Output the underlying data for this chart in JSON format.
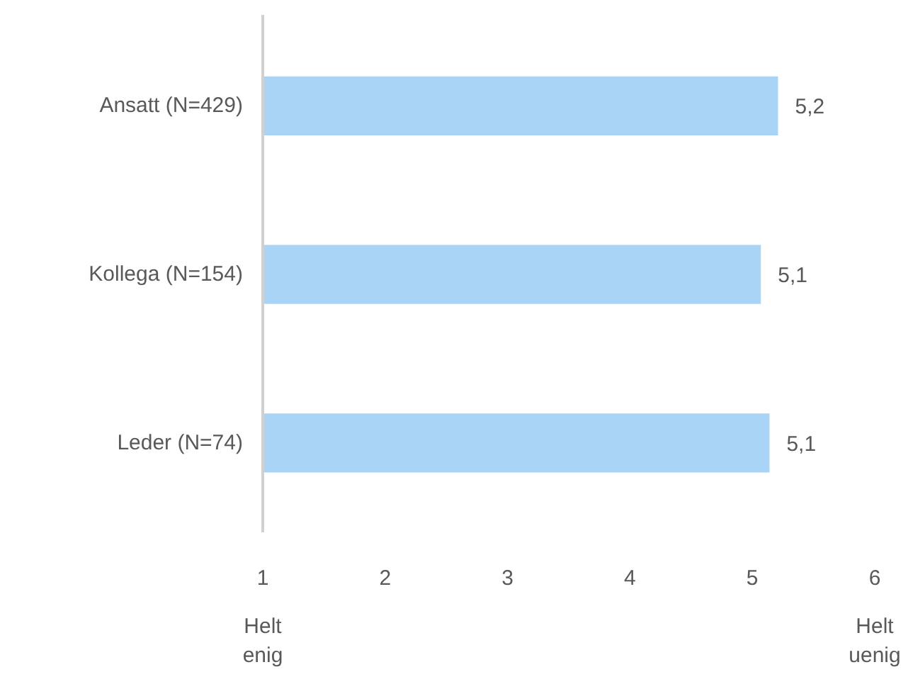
{
  "chart_data": {
    "type": "bar",
    "orientation": "horizontal",
    "categories": [
      "Ansatt (N=429)",
      "Kollega (N=154)",
      "Leder (N=74)"
    ],
    "values": [
      5.21,
      5.07,
      5.14
    ],
    "value_labels": [
      "5,2",
      "5,1",
      "5,1"
    ],
    "color": "#a9d4f5",
    "xlim": [
      1,
      6
    ],
    "xticks": [
      1,
      2,
      3,
      4,
      5,
      6
    ],
    "grid": false,
    "annotations": [
      "Helt\nenig",
      "Helt\nuenig"
    ]
  }
}
